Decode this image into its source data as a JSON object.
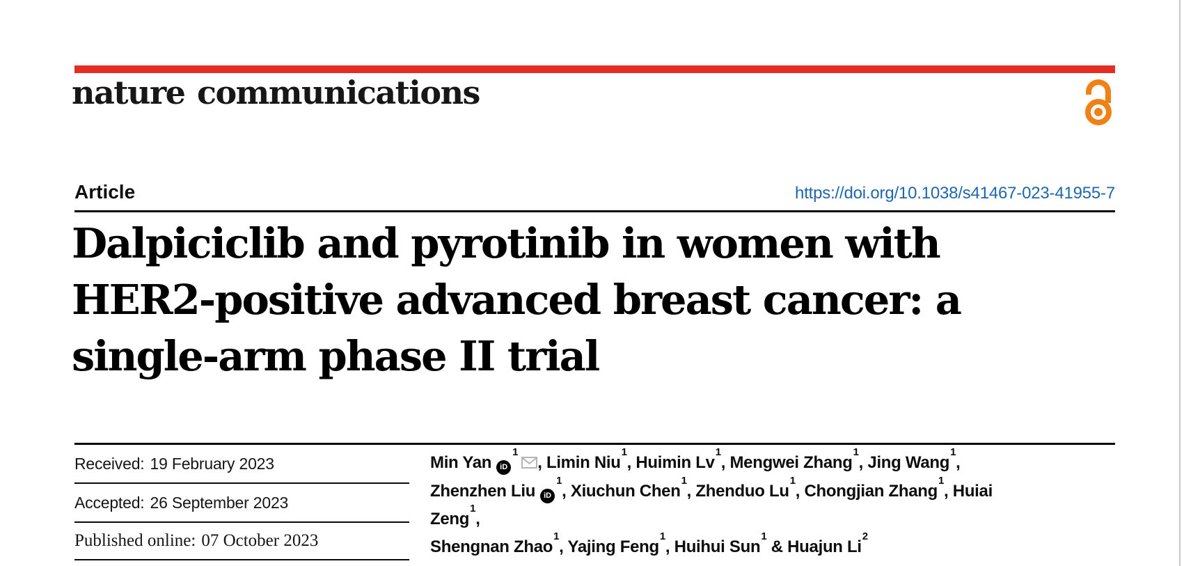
{
  "colors": {
    "brand_red": "#e42d23",
    "link_blue": "#1e67af",
    "open_access_orange": "#ef8115",
    "rule_black": "#050505",
    "envelope_gray": "#b5b5b5",
    "orcid_black": "#000000"
  },
  "journal": {
    "name": "nature communications"
  },
  "article": {
    "label": "Article",
    "doi": "https://doi.org/10.1038/s41467-023-41955-7",
    "title_lines": [
      "Dalpiciclib and pyrotinib in women with",
      "HER2-positive advanced breast cancer: a",
      "single-arm phase II trial"
    ]
  },
  "dates": {
    "items": [
      {
        "label": "Received:",
        "value": "19 February 2023"
      },
      {
        "label": "Accepted:",
        "value": "26 September 2023"
      },
      {
        "label": "Published online:",
        "value": "07 October 2023"
      }
    ]
  },
  "authors": {
    "orcid_icon_text": "iD",
    "list": [
      {
        "name": "Min Yan",
        "orcid": true,
        "sup": "1",
        "email": true,
        "sep": ", "
      },
      {
        "name": "Limin Niu",
        "sup": "1",
        "sep": ", "
      },
      {
        "name": "Huimin Lv",
        "sup": "1",
        "sep": ", "
      },
      {
        "name": "Mengwei Zhang",
        "sup": "1",
        "sep": ", "
      },
      {
        "name": "Jing Wang",
        "sup": "1",
        "sep": ", ",
        "br": true
      },
      {
        "name": "Zhenzhen Liu",
        "orcid": true,
        "sup": "1",
        "sep": ", "
      },
      {
        "name": "Xiuchun Chen",
        "sup": "1",
        "sep": ", "
      },
      {
        "name": "Zhenduo Lu",
        "sup": "1",
        "sep": ", "
      },
      {
        "name": "Chongjian Zhang",
        "sup": "1",
        "sep": ", "
      },
      {
        "name": "Huiai Zeng",
        "sup": "1",
        "sep": ", ",
        "br": true
      },
      {
        "name": "Shengnan Zhao",
        "sup": "1",
        "sep": ", "
      },
      {
        "name": "Yajing Feng",
        "sup": "1",
        "sep": ", "
      },
      {
        "name": "Huihui Sun",
        "sup": "1",
        "sep": " & "
      },
      {
        "name": "Huajun Li",
        "sup": "2",
        "sep": ""
      }
    ]
  }
}
